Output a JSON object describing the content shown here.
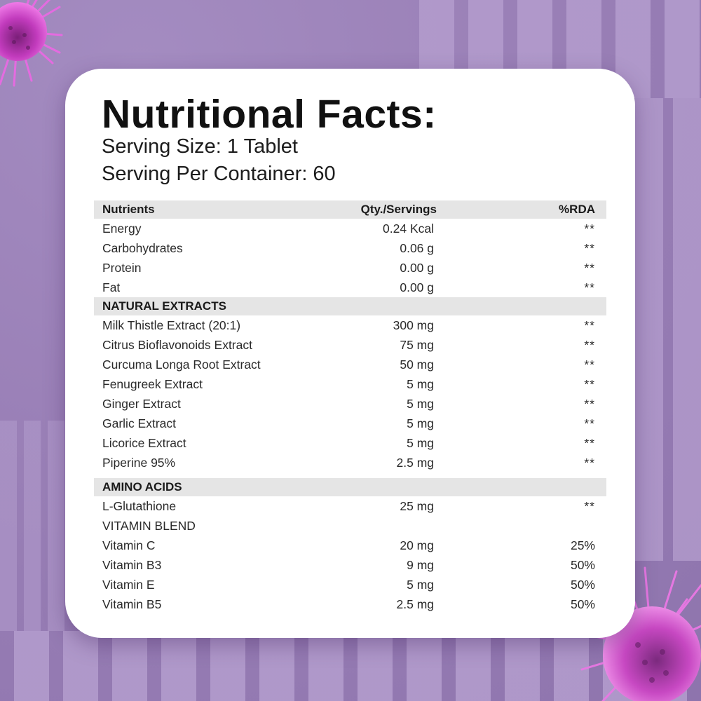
{
  "header": {
    "title": "Nutritional Facts:",
    "serving_size": "Serving Size: 1 Tablet",
    "servings_per_container": "Serving Per Container: 60"
  },
  "table": {
    "columns": [
      "Nutrients",
      "Qty./Servings",
      "%RDA"
    ],
    "basic": [
      {
        "name": "Energy",
        "qty": "0.24 Kcal",
        "rda": "**"
      },
      {
        "name": "Carbohydrates",
        "qty": "0.06 g",
        "rda": "**"
      },
      {
        "name": "Protein",
        "qty": "0.00 g",
        "rda": "**"
      },
      {
        "name": "Fat",
        "qty": "0.00 g",
        "rda": "**"
      }
    ],
    "natural_extracts": {
      "label": "NATURAL EXTRACTS",
      "rows": [
        {
          "name": "Milk Thistle Extract (20:1)",
          "qty": "300 mg",
          "rda": "**"
        },
        {
          "name": "Citrus Bioflavonoids Extract",
          "qty": "75 mg",
          "rda": "**"
        },
        {
          "name": "Curcuma Longa Root Extract",
          "qty": "50 mg",
          "rda": "**"
        },
        {
          "name": "Fenugreek Extract",
          "qty": "5 mg",
          "rda": "**"
        },
        {
          "name": "Ginger Extract",
          "qty": "5 mg",
          "rda": "**"
        },
        {
          "name": "Garlic Extract",
          "qty": "5 mg",
          "rda": "**"
        },
        {
          "name": "Licorice Extract",
          "qty": "5 mg",
          "rda": "**"
        },
        {
          "name": "Piperine 95%",
          "qty": "2.5 mg",
          "rda": "**"
        }
      ]
    },
    "amino_acids": {
      "label": "AMINO ACIDS",
      "rows": [
        {
          "name": "L-Glutathione",
          "qty": "25 mg",
          "rda": "**"
        }
      ]
    },
    "vitamin_blend": {
      "label": "VITAMIN BLEND",
      "rows": [
        {
          "name": "Vitamin C",
          "qty": "20 mg",
          "rda": "25%"
        },
        {
          "name": "Vitamin B3",
          "qty": "9 mg",
          "rda": "50%"
        },
        {
          "name": "Vitamin E",
          "qty": "5 mg",
          "rda": "50%"
        },
        {
          "name": "Vitamin B5",
          "qty": "2.5 mg",
          "rda": "50%"
        }
      ]
    }
  },
  "colors": {
    "background": "#9b82b9",
    "stripe": "#b29bcc",
    "card": "#ffffff",
    "header_row": "#e5e5e5",
    "flower": "#d64fd0"
  },
  "decorations": [
    "milk-thistle-flower-icon",
    "milk-thistle-flower-icon"
  ]
}
